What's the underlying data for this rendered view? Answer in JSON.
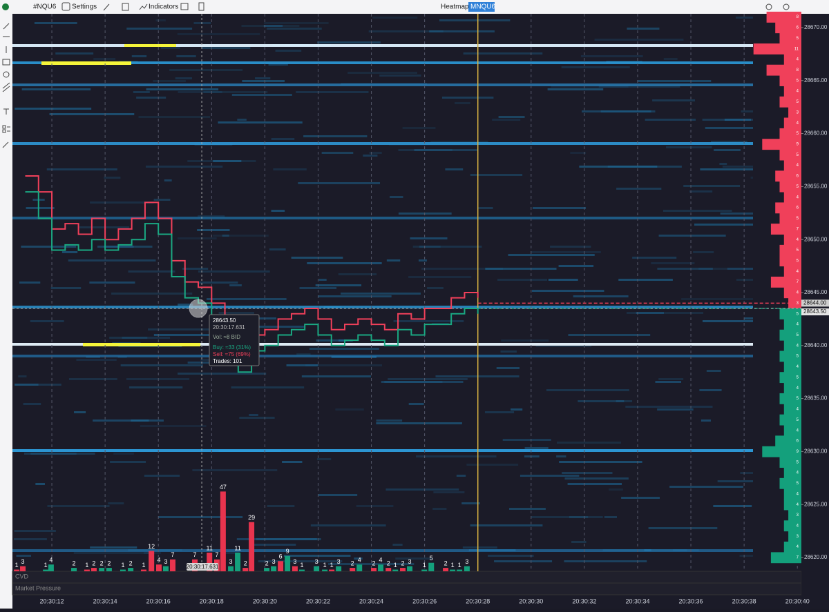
{
  "toolbar": {
    "symbol": "#NQU6",
    "settings": "Settings",
    "indicators": "Indicators",
    "mode": "Heatmap",
    "contract": "MNQU6",
    "auto": "A"
  },
  "chart_data": {
    "type": "heatmap",
    "xlim": [
      "20:30:10.520",
      "20:30:40.150"
    ],
    "xticks": [
      "20:30:12",
      "20:30:14",
      "20:30:16",
      "20:30:18",
      "20:30:20",
      "20:30:22",
      "20:30:24",
      "20:30:26",
      "20:30:28",
      "20:30:30",
      "20:30:32",
      "20:30:34",
      "20:30:36",
      "20:30:38",
      "20:30:40"
    ],
    "ylim": [
      28618.7,
      28671.3
    ],
    "yticks": [
      {
        "value": 28620,
        "label": "28620.00"
      },
      {
        "value": 28625,
        "label": "28625.00"
      },
      {
        "value": 28630,
        "label": "28630.00"
      },
      {
        "value": 28635,
        "label": "28635.00"
      },
      {
        "value": 28640,
        "label": "28640.00"
      },
      {
        "value": 28645,
        "label": "28645.00"
      },
      {
        "value": 28650,
        "label": "28650.00"
      },
      {
        "value": 28655,
        "label": "28655.00"
      },
      {
        "value": 28660,
        "label": "28660.00"
      },
      {
        "value": 28665,
        "label": "28665.00"
      },
      {
        "value": 28670,
        "label": "28670.00"
      }
    ],
    "grid": true,
    "now": "20:30:28",
    "series": [
      {
        "color": "#f0405a",
        "x": [
          "20:30:11.000",
          "20:30:11.500",
          "20:30:12.000",
          "20:30:12.500",
          "20:30:13.000",
          "20:30:13.500",
          "20:30:14.000",
          "20:30:14.500",
          "20:30:15.000",
          "20:30:15.500",
          "20:30:16.000",
          "20:30:16.500",
          "20:30:17.000",
          "20:30:17.500",
          "20:30:18.000",
          "20:30:18.500",
          "20:30:19.000",
          "20:30:19.500",
          "20:30:20.000",
          "20:30:20.500",
          "20:30:21.000",
          "20:30:21.500",
          "20:30:22.000",
          "20:30:22.500",
          "20:30:23.000",
          "20:30:23.500",
          "20:30:24.000",
          "20:30:24.500",
          "20:30:25.000",
          "20:30:25.500",
          "20:30:26.000",
          "20:30:26.500",
          "20:30:27.000",
          "20:30:27.500",
          "20:30:28.000"
        ],
        "values": [
          28656,
          28654.5,
          28651,
          28651.5,
          28650.5,
          28652,
          28650,
          28651,
          28652,
          28653.5,
          28652,
          28648,
          28646,
          28645.5,
          28644,
          28642,
          28639,
          28641,
          28641.5,
          28642.5,
          28643,
          28643.5,
          28642.5,
          28641.5,
          28642,
          28642.5,
          28642,
          28641.5,
          28643,
          28642.5,
          28643.5,
          28643.5,
          28644.5,
          28645,
          28644.5
        ]
      },
      {
        "color": "#1aa882",
        "x": [
          "20:30:11.000",
          "20:30:11.500",
          "20:30:12.000",
          "20:30:12.500",
          "20:30:13.000",
          "20:30:13.500",
          "20:30:14.000",
          "20:30:14.500",
          "20:30:15.000",
          "20:30:15.500",
          "20:30:16.000",
          "20:30:16.500",
          "20:30:17.000",
          "20:30:17.500",
          "20:30:18.000",
          "20:30:18.500",
          "20:30:19.000",
          "20:30:19.500",
          "20:30:20.000",
          "20:30:20.500",
          "20:30:21.000",
          "20:30:21.500",
          "20:30:22.000",
          "20:30:22.500",
          "20:30:23.000",
          "20:30:23.500",
          "20:30:24.000",
          "20:30:24.500",
          "20:30:25.000",
          "20:30:25.500",
          "20:30:26.000",
          "20:30:26.500",
          "20:30:27.000",
          "20:30:27.500",
          "20:30:28.000"
        ],
        "values": [
          28654.5,
          28652,
          28649,
          28649.5,
          28649,
          28650,
          28649,
          28649.5,
          28650,
          28651.5,
          28650.5,
          28646.5,
          28644.5,
          28644,
          28642,
          28640.5,
          28637.5,
          28639.5,
          28640,
          28641,
          28641.5,
          28642,
          28641,
          28640,
          28640.5,
          28641,
          28640.5,
          28640,
          28641.5,
          28641,
          28642,
          28642,
          28643,
          28643.5,
          28643
        ]
      }
    ],
    "volume": {
      "ylim": [
        0,
        50
      ],
      "x": [
        "20:30:10.680",
        "20:30:10.910",
        "20:30:11.770",
        "20:30:11.970",
        "20:30:12.830",
        "20:30:13.320",
        "20:30:13.580",
        "20:30:13.870",
        "20:30:14.150",
        "20:30:14.670",
        "20:30:14.960",
        "20:30:15.450",
        "20:30:15.740",
        "20:30:16.020",
        "20:30:16.280",
        "20:30:16.540",
        "20:30:17.370",
        "20:30:17.920",
        "20:30:18.200",
        "20:30:18.430",
        "20:30:18.720",
        "20:30:18.980",
        "20:30:19.270",
        "20:30:19.500",
        "20:30:20.070",
        "20:30:20.330",
        "20:30:20.590",
        "20:30:20.850",
        "20:30:21.130",
        "20:30:21.390",
        "20:30:21.940",
        "20:30:22.250",
        "20:30:22.510",
        "20:30:22.770",
        "20:30:23.290",
        "20:30:23.550",
        "20:30:24.090",
        "20:30:24.350",
        "20:30:24.640",
        "20:30:24.900",
        "20:30:25.180",
        "20:30:25.440",
        "20:30:25.990",
        "20:30:26.250",
        "20:30:26.790",
        "20:30:27.050",
        "20:30:27.310",
        "20:30:27.590"
      ],
      "values": [
        1,
        3,
        1,
        4,
        2,
        1,
        2,
        2,
        2,
        1,
        2,
        1,
        12,
        4,
        3,
        7,
        7,
        11,
        7,
        47,
        3,
        11,
        2,
        29,
        2,
        3,
        6,
        9,
        3,
        1,
        3,
        1,
        1,
        3,
        2,
        4,
        2,
        4,
        2,
        1,
        2,
        3,
        1,
        5,
        2,
        1,
        1,
        3
      ],
      "colors": [
        "#e8344e",
        "#e8344e",
        "#14a07c",
        "#14a07c",
        "#14a07c",
        "#e8344e",
        "#e8344e",
        "#14a07c",
        "#14a07c",
        "#14a07c",
        "#14a07c",
        "#e8344e",
        "#e8344e",
        "#e8344e",
        "#14a07c",
        "#e8344e",
        "#e8344e",
        "#e8344e",
        "#e8344e",
        "#e8344e",
        "#14a07c",
        "#14a07c",
        "#e8344e",
        "#e8344e",
        "#14a07c",
        "#14a07c",
        "#e8344e",
        "#14a07c",
        "#e8344e",
        "#14a07c",
        "#14a07c",
        "#14a07c",
        "#e8344e",
        "#14a07c",
        "#e8344e",
        "#14a07c",
        "#e8344e",
        "#14a07c",
        "#e8344e",
        "#14a07c",
        "#e8344e",
        "#14a07c",
        "#14a07c",
        "#14a07c",
        "#e8344e",
        "#14a07c",
        "#14a07c",
        "#14a07c"
      ]
    },
    "depth": [
      {
        "color": "#f0405a",
        "prices": [
          28644,
          28645,
          28646,
          28647,
          28648,
          28649,
          28650,
          28651,
          28652,
          28653,
          28654,
          28655,
          28656,
          28657,
          28658,
          28659,
          28660,
          28661,
          28662,
          28663,
          28664,
          28665,
          28666,
          28667,
          28668,
          28669,
          28670,
          28671
        ],
        "values": [
          3,
          4,
          7,
          4,
          5,
          5,
          4,
          7,
          5,
          6,
          4,
          5,
          6,
          4,
          5,
          9,
          5,
          4,
          3,
          5,
          4,
          5,
          8,
          4,
          11,
          5,
          6,
          8
        ]
      },
      {
        "color": "#14a07c",
        "prices": [
          28643,
          28642,
          28641,
          28640,
          28639,
          28638,
          28637,
          28636,
          28635,
          28634,
          28633,
          28632,
          28631,
          28630,
          28629,
          28628,
          28627,
          28626,
          28625,
          28624,
          28623,
          28622,
          28621,
          28620
        ],
        "values": [
          5,
          4,
          5,
          4,
          5,
          4,
          5,
          4,
          5,
          4,
          5,
          4,
          6,
          9,
          5,
          4,
          5,
          4,
          4,
          3,
          4,
          3,
          4,
          7
        ]
      }
    ],
    "current_prices": [
      {
        "value": 28644,
        "label": "28644.00",
        "color": "#f0405a"
      },
      {
        "value": 28643.5,
        "label": "28643.50",
        "color": "#14a07c"
      }
    ],
    "crosshair": {
      "x": "20:30:17.631",
      "y": 28643.5
    },
    "tooltip": {
      "price": "28643.50",
      "time": "20:30:17.631",
      "vol": "Vol: ≈8 BID",
      "buy": "Buy: ≈33 (31%)",
      "sell": "Sell: ≈75 (69%)",
      "trades": "Trades: 101"
    }
  },
  "panes": [
    "CVD",
    "Market Pressure"
  ]
}
